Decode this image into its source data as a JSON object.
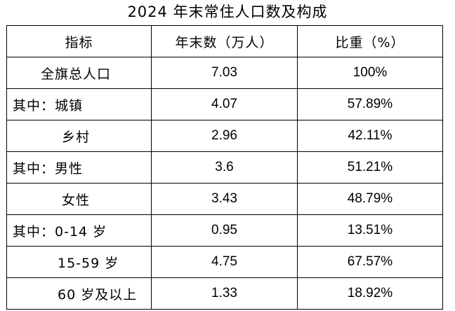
{
  "title": "2024 年末常住人口数及构成",
  "table": {
    "headers": [
      "指标",
      "年末数（万人）",
      "比重（%）"
    ],
    "rows": [
      {
        "label": "全旗总人口",
        "value": "7.03",
        "share": "100%"
      },
      {
        "label": "其中：城镇",
        "value": "4.07",
        "share": "57.89%"
      },
      {
        "label": "乡村",
        "value": "2.96",
        "share": "42.11%"
      },
      {
        "label": "其中：男性",
        "value": "3.6",
        "share": "51.21%"
      },
      {
        "label": "女性",
        "value": "3.43",
        "share": "48.79%"
      },
      {
        "label": "其中：0-14 岁",
        "value": "0.95",
        "share": "13.51%"
      },
      {
        "label": "15-59 岁",
        "value": "4.75",
        "share": "67.57%"
      },
      {
        "label": "60 岁及以上",
        "value": "1.33",
        "share": "18.92%"
      }
    ]
  }
}
